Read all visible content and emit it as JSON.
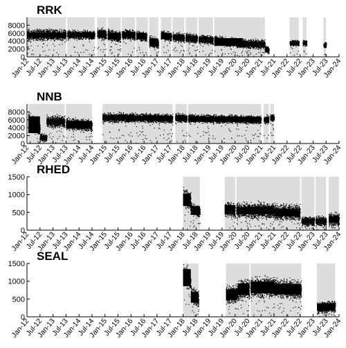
{
  "chart_data": [
    {
      "type": "scatter",
      "label": "RRK",
      "ylim": [
        0,
        10000
      ],
      "yticks": [
        0,
        2000,
        4000,
        6000,
        8000
      ],
      "xlim": [
        "2012-01",
        "2024-01"
      ],
      "xticks": [
        "Jan-12",
        "Jul-12",
        "Jan-13",
        "Jul-13",
        "Jan-14",
        "Jul-14",
        "Jan-15",
        "Jul-15",
        "Jan-16",
        "Jul-16",
        "Jan-17",
        "Jul-17",
        "Jan-18",
        "Jul-18",
        "Jan-19",
        "Jul-19",
        "Jan-20",
        "Jul-20",
        "Jan-21",
        "Jul-21",
        "Jan-22",
        "Jul-22",
        "Jan-23",
        "Jul-23",
        "Jan-24"
      ],
      "coverage": [
        [
          2012.0,
          2013.5
        ],
        [
          2013.55,
          2014.6
        ],
        [
          2014.7,
          2015.05
        ],
        [
          2015.1,
          2015.6
        ],
        [
          2015.65,
          2016.15
        ],
        [
          2016.2,
          2016.65
        ],
        [
          2016.7,
          2017.05
        ],
        [
          2017.15,
          2017.55
        ],
        [
          2017.6,
          2018.05
        ],
        [
          2018.1,
          2018.55
        ],
        [
          2018.6,
          2019.15
        ],
        [
          2019.2,
          2021.15
        ],
        [
          2022.1,
          2022.45
        ],
        [
          2022.6,
          2022.75
        ],
        [
          2023.4,
          2023.5
        ]
      ],
      "data_segments": [
        {
          "x": [
            2012.0,
            2013.5
          ],
          "y": [
            5500,
            5500
          ],
          "spread": 1800
        },
        {
          "x": [
            2013.55,
            2014.6
          ],
          "y": [
            5600,
            5500
          ],
          "spread": 1500
        },
        {
          "x": [
            2014.7,
            2015.05
          ],
          "y": [
            6000,
            5500
          ],
          "spread": 1800
        },
        {
          "x": [
            2015.1,
            2015.6
          ],
          "y": [
            5500,
            5000
          ],
          "spread": 1800
        },
        {
          "x": [
            2015.65,
            2016.15
          ],
          "y": [
            5700,
            5500
          ],
          "spread": 1800
        },
        {
          "x": [
            2016.2,
            2016.6
          ],
          "y": [
            5500,
            5000
          ],
          "spread": 1600
        },
        {
          "x": [
            2016.7,
            2017.05
          ],
          "y": [
            4000,
            3200
          ],
          "spread": 1800
        },
        {
          "x": [
            2017.15,
            2017.55
          ],
          "y": [
            5500,
            5000
          ],
          "spread": 1500
        },
        {
          "x": [
            2017.6,
            2018.05
          ],
          "y": [
            5000,
            4800
          ],
          "spread": 1500
        },
        {
          "x": [
            2018.1,
            2018.55
          ],
          "y": [
            4800,
            4500
          ],
          "spread": 1500
        },
        {
          "x": [
            2018.6,
            2019.15
          ],
          "y": [
            4500,
            4200
          ],
          "spread": 1500
        },
        {
          "x": [
            2019.2,
            2020.3
          ],
          "y": [
            4200,
            3300
          ],
          "spread": 1500
        },
        {
          "x": [
            2020.3,
            2021.15
          ],
          "y": [
            3200,
            3200
          ],
          "spread": 1500
        },
        {
          "x": [
            2021.15,
            2021.3
          ],
          "y": [
            2000,
            1500
          ],
          "spread": 1200
        },
        {
          "x": [
            2022.1,
            2022.45
          ],
          "y": [
            3500,
            3500
          ],
          "spread": 1000
        },
        {
          "x": [
            2022.6,
            2022.75
          ],
          "y": [
            3500,
            3500
          ],
          "spread": 1000
        },
        {
          "x": [
            2023.4,
            2023.5
          ],
          "y": [
            3000,
            3000
          ],
          "spread": 900
        }
      ]
    },
    {
      "type": "scatter",
      "label": "NNB",
      "ylim": [
        0,
        10000
      ],
      "yticks": [
        0,
        2000,
        4000,
        6000,
        8000
      ],
      "xlim": [
        "2012-01",
        "2024-01"
      ],
      "xticks": [
        "Jan-12",
        "Jul-12",
        "Jan-13",
        "Jul-13",
        "Jan-14",
        "Jul-14",
        "Jan-15",
        "Jul-15",
        "Jan-16",
        "Jul-16",
        "Jan-17",
        "Jul-17",
        "Jan-18",
        "Jul-18",
        "Jan-19",
        "Jul-19",
        "Jan-20",
        "Jul-20",
        "Jan-21",
        "Jul-21",
        "Jan-22",
        "Jul-22",
        "Jan-23",
        "Jul-23",
        "Jan-24"
      ],
      "coverage": [
        [
          2012.05,
          2013.45
        ],
        [
          2013.5,
          2014.5
        ],
        [
          2014.9,
          2017.6
        ],
        [
          2017.7,
          2018.15
        ],
        [
          2018.2,
          2021.0
        ],
        [
          2021.1,
          2021.3
        ],
        [
          2021.35,
          2021.5
        ]
      ],
      "data_segments": [
        {
          "x": [
            2012.05,
            2012.5
          ],
          "y": [
            6000,
            3500
          ],
          "spread": 2500
        },
        {
          "x": [
            2012.5,
            2012.75
          ],
          "y": [
            1500,
            1500
          ],
          "spread": 1200
        },
        {
          "x": [
            2012.75,
            2013.45
          ],
          "y": [
            5500,
            5500
          ],
          "spread": 2000
        },
        {
          "x": [
            2013.5,
            2014.5
          ],
          "y": [
            5000,
            4500
          ],
          "spread": 2000
        },
        {
          "x": [
            2014.9,
            2016.0
          ],
          "y": [
            6500,
            6500
          ],
          "spread": 1600
        },
        {
          "x": [
            2016.0,
            2017.6
          ],
          "y": [
            6500,
            6300
          ],
          "spread": 1500
        },
        {
          "x": [
            2017.7,
            2018.15
          ],
          "y": [
            6500,
            6300
          ],
          "spread": 1500
        },
        {
          "x": [
            2018.2,
            2021.0
          ],
          "y": [
            6300,
            6000
          ],
          "spread": 1400
        },
        {
          "x": [
            2021.1,
            2021.3
          ],
          "y": [
            6000,
            6000
          ],
          "spread": 1400
        },
        {
          "x": [
            2021.35,
            2021.5
          ],
          "y": [
            6500,
            6500
          ],
          "spread": 1200
        }
      ]
    },
    {
      "type": "scatter",
      "label": "RHED",
      "ylim": [
        0,
        1500
      ],
      "yticks": [
        0,
        500,
        1000,
        1500
      ],
      "xlim": [
        "2012-01",
        "2024-01"
      ],
      "xticks": [
        "Jan-12",
        "Jul-12",
        "Jan-13",
        "Jul-13",
        "Jan-14",
        "Jul-14",
        "Jan-15",
        "Jul-15",
        "Jan-16",
        "Jul-16",
        "Jan-17",
        "Jul-17",
        "Jan-18",
        "Jul-18",
        "Jan-19",
        "Jul-19",
        "Jan-20",
        "Jul-20",
        "Jan-21",
        "Jul-21",
        "Jan-22",
        "Jul-22",
        "Jan-23",
        "Jul-23",
        "Jan-24"
      ],
      "coverage": [
        [
          2018.0,
          2018.65
        ],
        [
          2019.6,
          2020.0
        ],
        [
          2020.05,
          2022.5
        ],
        [
          2022.55,
          2023.05
        ],
        [
          2023.1,
          2023.5
        ],
        [
          2023.6,
          2024.0
        ]
      ],
      "data_segments": [
        {
          "x": [
            2018.0,
            2018.3
          ],
          "y": [
            900,
            800
          ],
          "spread": 350
        },
        {
          "x": [
            2018.3,
            2018.65
          ],
          "y": [
            600,
            500
          ],
          "spread": 200
        },
        {
          "x": [
            2019.6,
            2020.0
          ],
          "y": [
            600,
            550
          ],
          "spread": 300
        },
        {
          "x": [
            2020.05,
            2021.5
          ],
          "y": [
            550,
            550
          ],
          "spread": 300
        },
        {
          "x": [
            2021.5,
            2022.5
          ],
          "y": [
            500,
            500
          ],
          "spread": 300
        },
        {
          "x": [
            2022.55,
            2023.05
          ],
          "y": [
            250,
            250
          ],
          "spread": 180
        },
        {
          "x": [
            2023.1,
            2023.5
          ],
          "y": [
            250,
            250
          ],
          "spread": 180
        },
        {
          "x": [
            2023.6,
            2024.0
          ],
          "y": [
            300,
            300
          ],
          "spread": 250
        }
      ]
    },
    {
      "type": "scatter",
      "label": "SEAL",
      "ylim": [
        0,
        1500
      ],
      "yticks": [
        0,
        500,
        1000,
        1500
      ],
      "xlim": [
        "2012-01",
        "2024-01"
      ],
      "xticks": [
        "Jan-12",
        "Jul-12",
        "Jan-13",
        "Jul-13",
        "Jan-14",
        "Jul-14",
        "Jan-15",
        "Jul-15",
        "Jan-16",
        "Jul-16",
        "Jan-17",
        "Jul-17",
        "Jan-18",
        "Jul-18",
        "Jan-19",
        "Jul-19",
        "Jan-20",
        "Jul-20",
        "Jan-21",
        "Jul-21",
        "Jan-22",
        "Jul-22",
        "Jan-23",
        "Jul-23",
        "Jan-24"
      ],
      "coverage": [
        [
          2018.0,
          2018.6
        ],
        [
          2019.65,
          2020.55
        ],
        [
          2020.6,
          2022.55
        ],
        [
          2023.15,
          2023.85
        ]
      ],
      "data_segments": [
        {
          "x": [
            2018.0,
            2018.3
          ],
          "y": [
            1200,
            1000
          ],
          "spread": 400
        },
        {
          "x": [
            2018.3,
            2018.6
          ],
          "y": [
            600,
            500
          ],
          "spread": 300
        },
        {
          "x": [
            2019.65,
            2020.1
          ],
          "y": [
            600,
            650
          ],
          "spread": 350
        },
        {
          "x": [
            2020.1,
            2020.55
          ],
          "y": [
            750,
            800
          ],
          "spread": 400
        },
        {
          "x": [
            2020.6,
            2021.5
          ],
          "y": [
            800,
            850
          ],
          "spread": 400
        },
        {
          "x": [
            2021.5,
            2022.55
          ],
          "y": [
            800,
            750
          ],
          "spread": 350
        },
        {
          "x": [
            2023.15,
            2023.85
          ],
          "y": [
            250,
            300
          ],
          "spread": 220
        }
      ]
    }
  ]
}
